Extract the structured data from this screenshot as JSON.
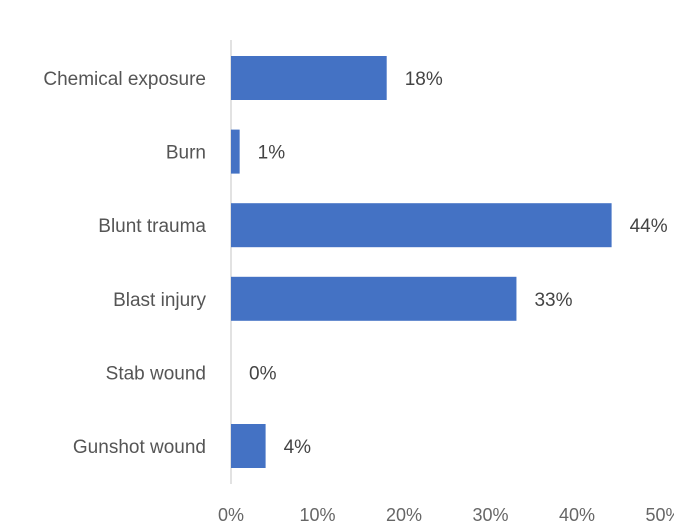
{
  "chart_data": {
    "type": "bar",
    "orientation": "horizontal",
    "categories": [
      "Chemical exposure",
      "Burn",
      "Blunt trauma",
      "Blast injury",
      "Stab wound",
      "Gunshot wound"
    ],
    "values": [
      18,
      1,
      44,
      33,
      0,
      4
    ],
    "value_labels": [
      "18%",
      "1%",
      "44%",
      "33%",
      "0%",
      "4%"
    ],
    "x_ticks": [
      "0%",
      "10%",
      "20%",
      "30%",
      "40%",
      "50%"
    ],
    "xlim": [
      0,
      50
    ],
    "grid": false,
    "bar_color": "#4472C4",
    "axis_color": "#D9D9D9"
  }
}
